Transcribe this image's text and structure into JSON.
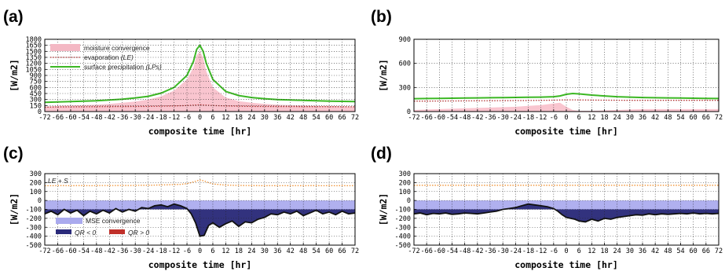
{
  "chart_data": [
    {
      "panel": "(a)",
      "type": "line",
      "xlabel": "composite time [hr]",
      "ylabel": "[W/m2]",
      "xlim": [
        -72,
        72
      ],
      "ylim": [
        0,
        1800
      ],
      "xticks": [
        "-72",
        "-66",
        "-60",
        "-54",
        "-48",
        "-42",
        "-36",
        "-30",
        "-24",
        "-18",
        "-12",
        "-6",
        "0",
        "6",
        "12",
        "18",
        "24",
        "30",
        "36",
        "42",
        "48",
        "54",
        "60",
        "66",
        "72"
      ],
      "yticks": [
        "0",
        "150",
        "300",
        "450",
        "600",
        "750",
        "900",
        "1050",
        "1200",
        "1350",
        "1500",
        "1650",
        "1800"
      ],
      "grid": true,
      "legend": {
        "placement": "top-left",
        "items": [
          {
            "label": "moisture convergence",
            "suffix": "",
            "color": "#f4b8c4",
            "style": "area"
          },
          {
            "label": "evaporation ",
            "suffix": "(LE)",
            "color": "#b03030",
            "style": "dotted"
          },
          {
            "label": "surface precipitation ",
            "suffix": "(LPs)",
            "color": "#3cb824",
            "style": "line"
          }
        ]
      },
      "x": [
        -72,
        -66,
        -60,
        -54,
        -48,
        -42,
        -36,
        -30,
        -24,
        -18,
        -12,
        -6,
        -3,
        -1.5,
        0,
        1.5,
        3,
        6,
        12,
        18,
        24,
        30,
        36,
        42,
        48,
        54,
        60,
        66,
        72
      ],
      "series": [
        {
          "key": "area",
          "color": "#f9c5cf",
          "values": [
            120,
            140,
            150,
            160,
            170,
            190,
            220,
            250,
            300,
            380,
            520,
            800,
            1100,
            1400,
            1500,
            1350,
            1000,
            600,
            350,
            260,
            220,
            190,
            170,
            160,
            150,
            140,
            140,
            130,
            120
          ]
        },
        {
          "key": "dotted",
          "color": "#b03030",
          "values": [
            110,
            115,
            118,
            120,
            122,
            124,
            126,
            128,
            130,
            135,
            140,
            150,
            160,
            165,
            170,
            165,
            160,
            150,
            140,
            135,
            130,
            128,
            126,
            125,
            124,
            123,
            122,
            122,
            120
          ]
        },
        {
          "key": "line",
          "color": "#3cb824",
          "values": [
            230,
            240,
            250,
            260,
            270,
            290,
            310,
            340,
            380,
            460,
            600,
            900,
            1250,
            1550,
            1650,
            1500,
            1200,
            800,
            500,
            400,
            350,
            320,
            300,
            290,
            280,
            270,
            260,
            255,
            250
          ]
        }
      ]
    },
    {
      "panel": "(b)",
      "type": "line",
      "xlabel": "composite time [hr]",
      "ylabel": "[W/m2]",
      "xlim": [
        -72,
        72
      ],
      "ylim": [
        0,
        900
      ],
      "xticks": [
        "-72",
        "-66",
        "-60",
        "-54",
        "-48",
        "-42",
        "-36",
        "-30",
        "-24",
        "-18",
        "-12",
        "-6",
        "0",
        "6",
        "12",
        "18",
        "24",
        "30",
        "36",
        "42",
        "48",
        "54",
        "60",
        "66",
        "72"
      ],
      "yticks": [
        "0",
        "300",
        "600",
        "900"
      ],
      "grid": true,
      "x": [
        -72,
        -66,
        -60,
        -54,
        -48,
        -42,
        -36,
        -30,
        -24,
        -18,
        -12,
        -6,
        -3,
        0,
        3,
        6,
        12,
        18,
        24,
        30,
        36,
        42,
        48,
        54,
        60,
        66,
        72
      ],
      "series": [
        {
          "key": "area",
          "color": "#f9c5cf",
          "values": [
            20,
            25,
            30,
            35,
            40,
            45,
            50,
            55,
            60,
            70,
            80,
            100,
            110,
            60,
            20,
            10,
            10,
            15,
            20,
            25,
            30,
            30,
            30,
            30,
            30,
            30,
            30
          ]
        },
        {
          "key": "dotted",
          "color": "#b03030",
          "values": [
            130,
            130,
            131,
            132,
            133,
            134,
            135,
            136,
            137,
            138,
            140,
            142,
            144,
            146,
            146,
            145,
            143,
            142,
            141,
            140,
            140,
            140,
            140,
            140,
            140,
            140,
            140
          ]
        },
        {
          "key": "line",
          "color": "#3cb824",
          "values": [
            160,
            162,
            164,
            166,
            168,
            170,
            172,
            174,
            176,
            178,
            180,
            185,
            195,
            215,
            225,
            220,
            205,
            195,
            185,
            180,
            175,
            172,
            170,
            168,
            166,
            164,
            162
          ]
        }
      ]
    },
    {
      "panel": "(c)",
      "type": "area",
      "xlabel": "composite time [hr]",
      "ylabel": "[W/m2]",
      "xlim": [
        -72,
        72
      ],
      "ylim": [
        -500,
        300
      ],
      "xticks": [
        "-72",
        "-66",
        "-60",
        "-54",
        "-48",
        "-42",
        "-36",
        "-30",
        "-24",
        "-18",
        "-12",
        "-6",
        "0",
        "6",
        "12",
        "18",
        "24",
        "30",
        "36",
        "42",
        "48",
        "54",
        "60",
        "66",
        "72"
      ],
      "yticks": [
        "-500",
        "-400",
        "-300",
        "-200",
        "-100",
        "0",
        "100",
        "200",
        "300"
      ],
      "grid": true,
      "annotation": {
        "text": "LE + S"
      },
      "legend": {
        "placement": "bottom-left",
        "items": [
          {
            "label": "MSE convergence",
            "color": "#aaaaee"
          },
          {
            "label": "QR < 0",
            "color": "#2a2a7a"
          },
          {
            "label": "QR > 0",
            "color": "#c0302a"
          }
        ]
      },
      "mse_convergence": {
        "color": "#b0b0ef",
        "value": -100
      },
      "x": [
        -72,
        -69,
        -66,
        -63,
        -60,
        -57,
        -54,
        -51,
        -48,
        -45,
        -42,
        -39,
        -36,
        -33,
        -30,
        -27,
        -24,
        -21,
        -18,
        -15,
        -12,
        -9,
        -6,
        -4,
        -2,
        0,
        2,
        4,
        6,
        9,
        12,
        15,
        18,
        21,
        24,
        27,
        30,
        33,
        36,
        39,
        42,
        45,
        48,
        51,
        54,
        57,
        60,
        63,
        66,
        69,
        72
      ],
      "series": [
        {
          "key": "dotted",
          "name": "",
          "color": "#f09030",
          "values": [
            165,
            165,
            166,
            166,
            165,
            166,
            166,
            165,
            166,
            167,
            166,
            167,
            168,
            167,
            168,
            170,
            170,
            172,
            173,
            175,
            178,
            180,
            188,
            200,
            215,
            230,
            218,
            200,
            185,
            178,
            172,
            170,
            168,
            167,
            166,
            166,
            165,
            166,
            165,
            166,
            165,
            166,
            165,
            166,
            166,
            165,
            166,
            165,
            166,
            165,
            166
          ]
        },
        {
          "key": "line",
          "name": "",
          "color": "#111111",
          "values": [
            -150,
            -120,
            -160,
            -100,
            -140,
            -110,
            -170,
            -120,
            -150,
            -110,
            -140,
            -90,
            -130,
            -100,
            -120,
            -80,
            -90,
            -60,
            -50,
            -70,
            -40,
            -60,
            -90,
            -150,
            -250,
            -400,
            -390,
            -280,
            -250,
            -300,
            -260,
            -230,
            -290,
            -240,
            -250,
            -210,
            -190,
            -150,
            -160,
            -130,
            -150,
            -120,
            -170,
            -140,
            -110,
            -150,
            -130,
            -160,
            -120,
            -150,
            -140
          ]
        }
      ]
    },
    {
      "panel": "(d)",
      "type": "area",
      "xlabel": "composite time [hr]",
      "ylabel": "[W/m2]",
      "xlim": [
        -72,
        72
      ],
      "ylim": [
        -500,
        300
      ],
      "xticks": [
        "-72",
        "-66",
        "-60",
        "-54",
        "-48",
        "-42",
        "-36",
        "-30",
        "-24",
        "-18",
        "-12",
        "-6",
        "0",
        "6",
        "12",
        "18",
        "24",
        "30",
        "36",
        "42",
        "48",
        "54",
        "60",
        "66",
        "72"
      ],
      "yticks": [
        "-500",
        "-400",
        "-300",
        "-200",
        "-100",
        "0",
        "100",
        "200",
        "300"
      ],
      "grid": true,
      "mse_convergence": {
        "color": "#b0b0ef",
        "value": -100
      },
      "x": [
        -72,
        -69,
        -66,
        -63,
        -60,
        -57,
        -54,
        -51,
        -48,
        -45,
        -42,
        -39,
        -36,
        -33,
        -30,
        -27,
        -24,
        -21,
        -18,
        -15,
        -12,
        -9,
        -6,
        -4,
        -2,
        0,
        2,
        4,
        6,
        9,
        12,
        15,
        18,
        21,
        24,
        27,
        30,
        33,
        36,
        39,
        42,
        45,
        48,
        51,
        54,
        57,
        60,
        63,
        66,
        69,
        72
      ],
      "series": [
        {
          "key": "dotted",
          "name": "",
          "color": "#f09030",
          "values": [
            170,
            170,
            170,
            170,
            170,
            170,
            170,
            170,
            170,
            170,
            170,
            170,
            170,
            170,
            170,
            170,
            170,
            170,
            170,
            170,
            170,
            170,
            170,
            170,
            170,
            170,
            170,
            170,
            170,
            170,
            170,
            170,
            170,
            170,
            170,
            170,
            170,
            170,
            170,
            170,
            170,
            170,
            170,
            170,
            170,
            170,
            170,
            170,
            170,
            170,
            170
          ]
        },
        {
          "key": "line",
          "name": "",
          "color": "#111111",
          "values": [
            -150,
            -140,
            -160,
            -145,
            -150,
            -140,
            -155,
            -150,
            -140,
            -145,
            -150,
            -140,
            -130,
            -120,
            -100,
            -90,
            -80,
            -60,
            -40,
            -50,
            -60,
            -70,
            -90,
            -120,
            -160,
            -190,
            -200,
            -210,
            -230,
            -240,
            -210,
            -230,
            -200,
            -210,
            -190,
            -180,
            -170,
            -160,
            -165,
            -150,
            -160,
            -150,
            -155,
            -150,
            -145,
            -150,
            -140,
            -150,
            -145,
            -150,
            -145
          ]
        }
      ]
    }
  ]
}
